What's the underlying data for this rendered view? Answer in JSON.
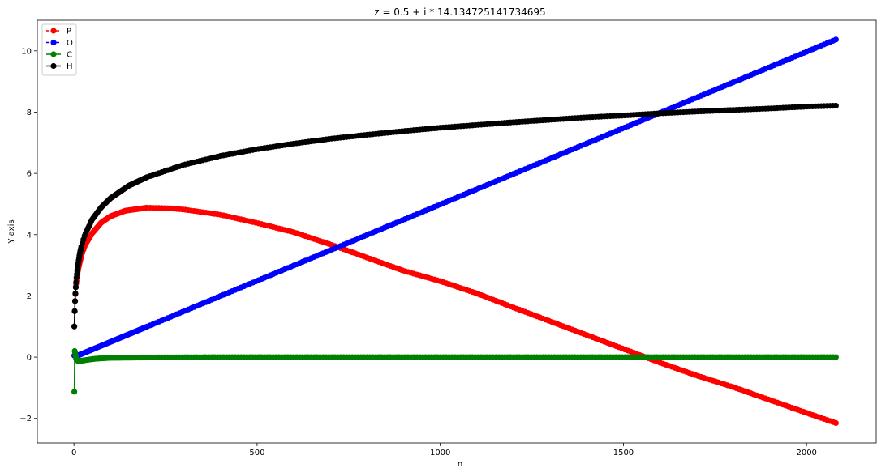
{
  "chart_data": {
    "type": "line",
    "title": "z = 0.5 + i * 14.134725141734695",
    "xlabel": "n",
    "ylabel": "Y axis",
    "xlim": [
      -100,
      2190
    ],
    "ylim": [
      -2.8,
      11.0
    ],
    "x_ticks": [
      0,
      500,
      1000,
      1500,
      2000
    ],
    "x_tick_labels": [
      "0",
      "500",
      "1000",
      "1500",
      "2000"
    ],
    "y_ticks": [
      -2,
      0,
      2,
      4,
      6,
      8,
      10
    ],
    "y_tick_labels": [
      "−2",
      "0",
      "2",
      "4",
      "6",
      "8",
      "10"
    ],
    "grid": false,
    "legend_position": "top-left",
    "x_range": [
      1,
      2080
    ],
    "series": [
      {
        "name": "P",
        "color": "#ff0000",
        "line_style": "dashed",
        "marker": "circle",
        "points": [
          [
            1,
            1.0
          ],
          [
            2,
            1.5
          ],
          [
            3,
            1.83
          ],
          [
            5,
            2.29
          ],
          [
            8,
            2.6
          ],
          [
            12,
            2.9
          ],
          [
            20,
            3.3
          ],
          [
            30,
            3.65
          ],
          [
            50,
            4.05
          ],
          [
            75,
            4.4
          ],
          [
            100,
            4.6
          ],
          [
            140,
            4.78
          ],
          [
            200,
            4.88
          ],
          [
            260,
            4.86
          ],
          [
            300,
            4.82
          ],
          [
            400,
            4.65
          ],
          [
            500,
            4.38
          ],
          [
            600,
            4.08
          ],
          [
            700,
            3.68
          ],
          [
            800,
            3.25
          ],
          [
            900,
            2.82
          ],
          [
            1000,
            2.48
          ],
          [
            1100,
            2.08
          ],
          [
            1200,
            1.62
          ],
          [
            1300,
            1.17
          ],
          [
            1400,
            0.72
          ],
          [
            1500,
            0.27
          ],
          [
            1600,
            -0.18
          ],
          [
            1700,
            -0.6
          ],
          [
            1800,
            -0.98
          ],
          [
            1900,
            -1.4
          ],
          [
            2000,
            -1.82
          ],
          [
            2080,
            -2.15
          ]
        ]
      },
      {
        "name": "O",
        "color": "#0000ff",
        "line_style": "dashed",
        "marker": "circle",
        "points": [
          [
            10,
            0.05
          ],
          [
            2080,
            10.37
          ]
        ]
      },
      {
        "name": "C",
        "color": "#008000",
        "line_style": "solid",
        "marker": "circle",
        "points": [
          [
            1,
            -1.13
          ],
          [
            2,
            0.2
          ],
          [
            3,
            0.15
          ],
          [
            4,
            0.08
          ],
          [
            6,
            -0.05
          ],
          [
            8,
            -0.1
          ],
          [
            12,
            -0.13
          ],
          [
            20,
            -0.12
          ],
          [
            35,
            -0.09
          ],
          [
            60,
            -0.05
          ],
          [
            100,
            -0.02
          ],
          [
            200,
            -0.01
          ],
          [
            400,
            0.0
          ],
          [
            2080,
            0.0
          ]
        ]
      },
      {
        "name": "H",
        "color": "#000000",
        "line_style": "solid",
        "marker": "circle",
        "points": [
          [
            1,
            1.0
          ],
          [
            2,
            1.5
          ],
          [
            3,
            1.83
          ],
          [
            4,
            2.08
          ],
          [
            5,
            2.28
          ],
          [
            7,
            2.6
          ],
          [
            10,
            2.93
          ],
          [
            15,
            3.32
          ],
          [
            20,
            3.6
          ],
          [
            30,
            4.0
          ],
          [
            50,
            4.5
          ],
          [
            75,
            4.9
          ],
          [
            100,
            5.19
          ],
          [
            150,
            5.6
          ],
          [
            200,
            5.88
          ],
          [
            300,
            6.28
          ],
          [
            400,
            6.57
          ],
          [
            500,
            6.79
          ],
          [
            600,
            6.97
          ],
          [
            700,
            7.13
          ],
          [
            800,
            7.26
          ],
          [
            900,
            7.38
          ],
          [
            1000,
            7.49
          ],
          [
            1100,
            7.58
          ],
          [
            1200,
            7.67
          ],
          [
            1300,
            7.75
          ],
          [
            1400,
            7.83
          ],
          [
            1500,
            7.89
          ],
          [
            1600,
            7.96
          ],
          [
            1700,
            8.02
          ],
          [
            1800,
            8.07
          ],
          [
            1900,
            8.12
          ],
          [
            2000,
            8.18
          ],
          [
            2080,
            8.21
          ]
        ]
      }
    ]
  }
}
